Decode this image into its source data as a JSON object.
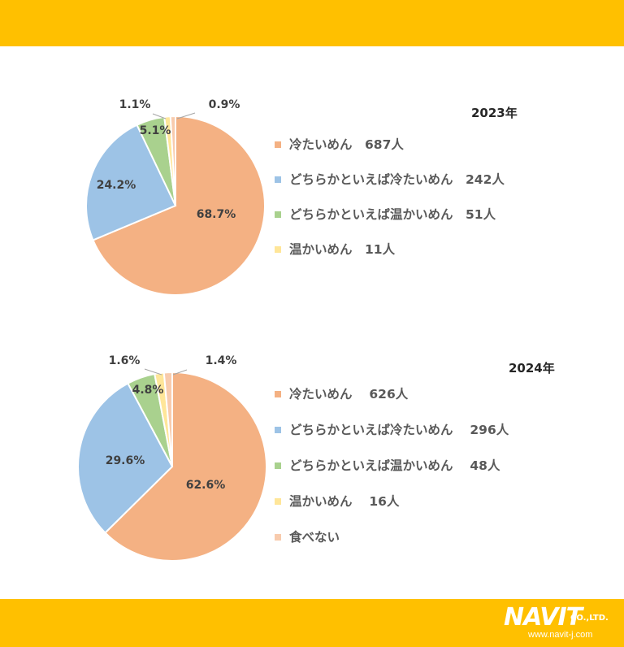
{
  "chart_data": [
    {
      "type": "pie",
      "title": "2023年",
      "series": [
        {
          "legend": "冷たいめん　687人",
          "label": "68.7%",
          "value": 68.7,
          "color": "#F4B183"
        },
        {
          "legend": "どちらかといえば冷たいめん　242人",
          "label": "24.2%",
          "value": 24.2,
          "color": "#9DC3E6"
        },
        {
          "legend": "どちらかといえば温かいめん　51人",
          "label": "5.1%",
          "value": 5.1,
          "color": "#A9D18E"
        },
        {
          "legend": "温かいめん　11人",
          "label": "1.1%",
          "value": 1.1,
          "color": "#FFE699"
        },
        {
          "legend": "",
          "label": "0.9%",
          "value": 0.9,
          "color": "#F8CBAD"
        }
      ]
    },
    {
      "type": "pie",
      "title": "2024年",
      "series": [
        {
          "legend": "冷たいめん　 626人",
          "label": "62.6%",
          "value": 62.6,
          "color": "#F4B183"
        },
        {
          "legend": "どちらかといえば冷たいめん　 296人",
          "label": "29.6%",
          "value": 29.6,
          "color": "#9DC3E6"
        },
        {
          "legend": "どちらかといえば温かいめん　 48人",
          "label": "4.8%",
          "value": 4.8,
          "color": "#A9D18E"
        },
        {
          "legend": "温かいめん　 16人",
          "label": "1.6%",
          "value": 1.6,
          "color": "#FFE699"
        },
        {
          "legend": "食べない",
          "label": "1.4%",
          "value": 1.4,
          "color": "#F8CBAD"
        }
      ]
    }
  ],
  "logo": {
    "main": "NAVIT",
    "company": "CO.,LTD.",
    "url": "www.navit-j.com"
  },
  "colors": {
    "band": "#FFC000"
  }
}
